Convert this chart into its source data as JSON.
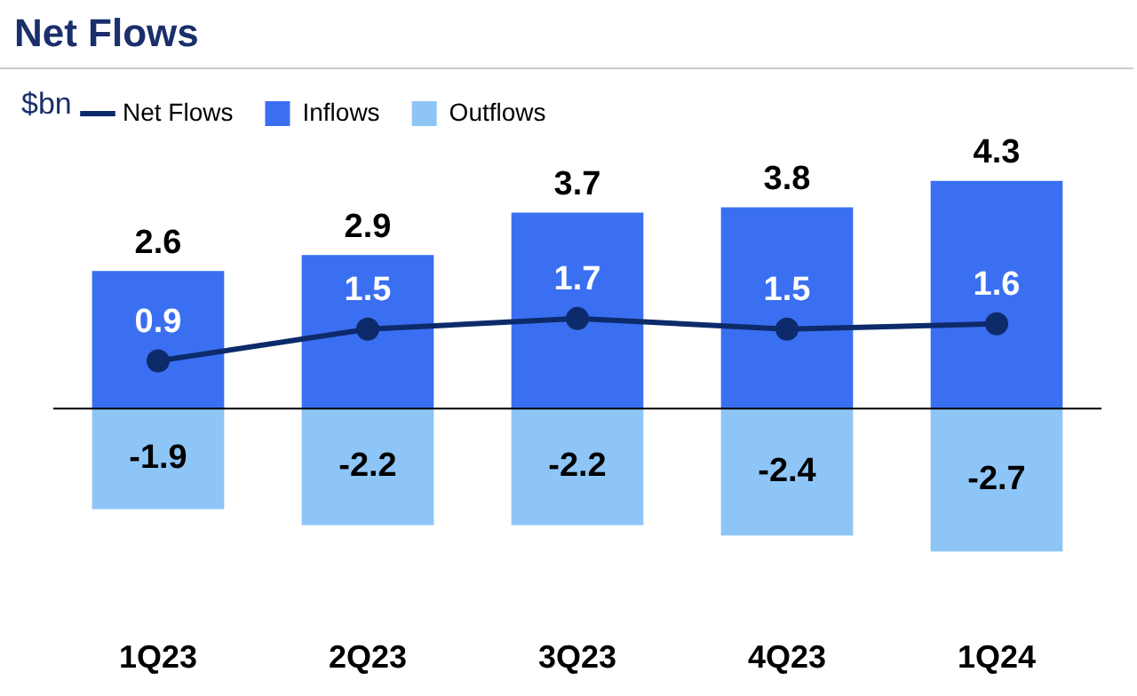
{
  "chart_data": {
    "type": "bar",
    "title": "Net Flows",
    "ylabel": "$bn",
    "categories": [
      "1Q23",
      "2Q23",
      "3Q23",
      "4Q23",
      "1Q24"
    ],
    "stacked": true,
    "data_labels": true,
    "legend": "top left",
    "grid": false,
    "series": [
      {
        "name": "Net Flows",
        "type": "line",
        "color": "#0d2b6b",
        "marker": "circle",
        "values": [
          0.9,
          1.5,
          1.7,
          1.5,
          1.6
        ]
      },
      {
        "name": "Inflows",
        "color": "#3b6ff2",
        "values": [
          2.6,
          2.9,
          3.7,
          3.8,
          4.3
        ]
      },
      {
        "name": "Outflows",
        "color": "#8ec5f7",
        "values": [
          -1.9,
          -2.2,
          -2.2,
          -2.4,
          -2.7
        ]
      }
    ]
  }
}
